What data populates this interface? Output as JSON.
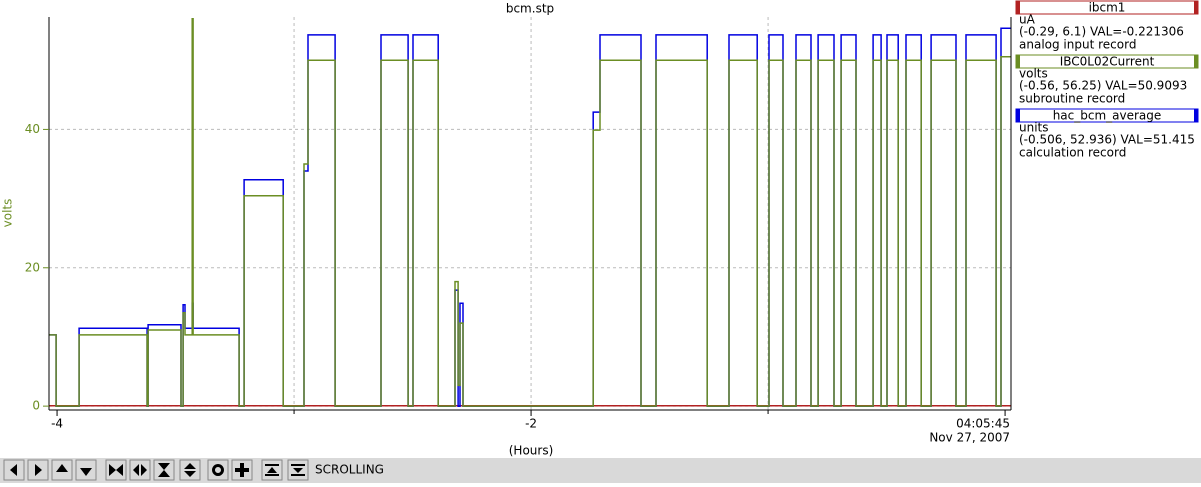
{
  "chart_data": {
    "type": "line",
    "step": "post",
    "title": "bcm.stp",
    "xlabel": "(Hours)",
    "ylabel": "volts",
    "xlim": [
      -4.034,
      0.025
    ],
    "xticks": [
      -4,
      -2,
      {
        "value": 0,
        "label": "04:05:45"
      }
    ],
    "xminor": [
      -3,
      -1
    ],
    "date_label": "Nov 27, 2007",
    "ylim": [
      -0.56,
      56.25
    ],
    "yticks": [
      0,
      20,
      40
    ],
    "grid": true,
    "axis_color": "#6b8e23",
    "x": [
      -4.034,
      -4.004,
      -3.907,
      -3.62,
      -3.616,
      -3.477,
      -3.468,
      -3.46,
      -3.43,
      -3.426,
      -3.232,
      -3.211,
      -3.046,
      -2.958,
      -2.941,
      -2.827,
      -2.633,
      -2.519,
      -2.498,
      -2.392,
      -2.321,
      -2.308,
      -2.3,
      -2.287,
      -1.738,
      -1.709,
      -1.536,
      -1.473,
      -1.257,
      -1.165,
      -1.046,
      -0.996,
      -0.937,
      -0.882,
      -0.819,
      -0.789,
      -0.722,
      -0.692,
      -0.629,
      -0.557,
      -0.523,
      -0.498,
      -0.451,
      -0.418,
      -0.354,
      -0.312,
      -0.207,
      -0.165,
      -0.038,
      -0.017,
      0.025
    ],
    "series": [
      {
        "name": "ibcm1",
        "color": "#b22222",
        "units": "uA",
        "status": "(-0.29, 6.1) VAL=-0.221306",
        "record": "analog input record",
        "range": [
          -0.29,
          6.1
        ],
        "x": [
          -4.034,
          0.025
        ],
        "values": [
          -0.221,
          -0.221
        ]
      },
      {
        "name": "hac_bcm_average",
        "color": "#0000e0",
        "units": "units",
        "status": "(-0.506, 52.936) VAL=51.415",
        "record": "calculation record",
        "range": [
          -0.506,
          52.936
        ],
        "values": [
          9.7,
          0,
          10.6,
          0,
          11.1,
          0,
          13.8,
          10.6,
          14,
          10.6,
          0,
          30.8,
          0,
          32,
          50.5,
          0,
          50.5,
          0,
          50.5,
          0,
          15.8,
          0,
          14,
          0,
          40,
          50.5,
          0,
          50.5,
          0,
          50.5,
          0,
          50.5,
          0,
          50.5,
          0,
          50.5,
          0,
          50.5,
          0,
          50.5,
          0,
          50.5,
          0,
          50.5,
          0,
          50.5,
          0,
          50.5,
          0,
          51.4,
          51.4
        ]
      },
      {
        "name": "IBC0L02Current",
        "color": "#6b8e23",
        "units": "volts",
        "status": "(-0.56, 56.25) VAL=50.9093",
        "record": "subroutine record",
        "range": [
          -0.56,
          56.25
        ],
        "values": [
          10.3,
          0,
          10.3,
          0,
          11,
          0,
          13.5,
          10.3,
          56,
          10.3,
          0,
          30.4,
          0,
          35,
          50,
          0,
          50,
          0,
          50,
          0,
          18,
          3,
          12,
          0,
          39.9,
          50,
          0,
          50,
          0,
          50,
          0,
          50,
          0,
          50,
          0,
          50,
          0,
          50,
          0,
          50,
          0,
          50,
          0,
          50,
          0,
          50,
          0,
          50,
          0,
          50.5,
          50.5
        ]
      }
    ],
    "legend_order": [
      0,
      2,
      1
    ],
    "status_text": "SCROLLING"
  }
}
